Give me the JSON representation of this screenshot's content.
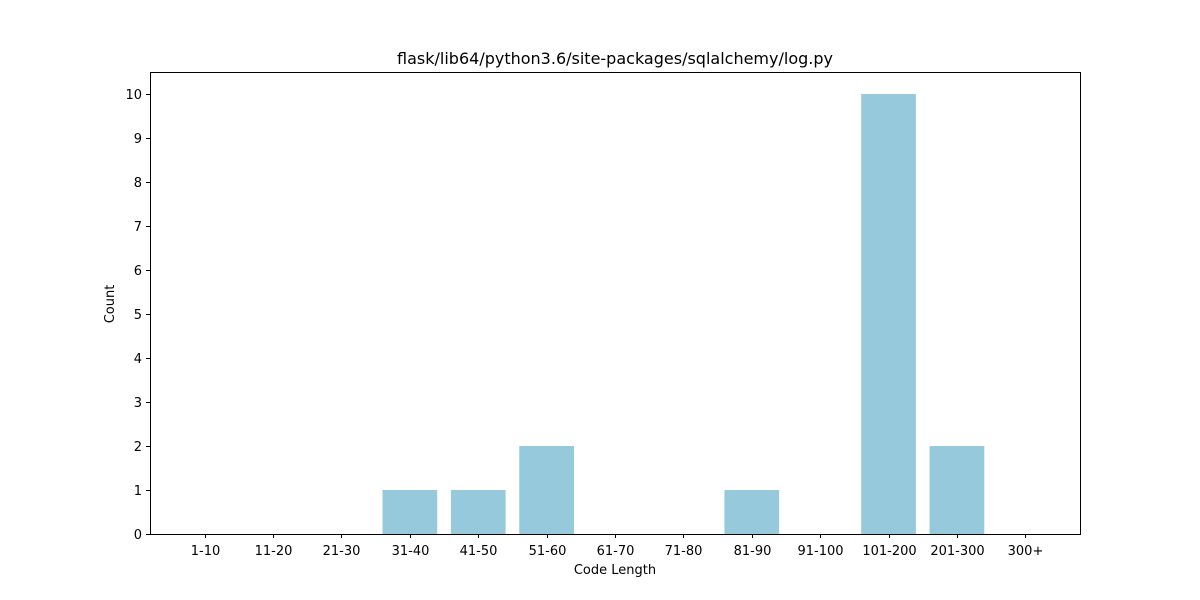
{
  "chart_data": {
    "type": "bar",
    "title": "flask/lib64/python3.6/site-packages/sqlalchemy/log.py",
    "xlabel": "Code Length",
    "ylabel": "Count",
    "categories": [
      "1-10",
      "11-20",
      "21-30",
      "31-40",
      "41-50",
      "51-60",
      "61-70",
      "71-80",
      "81-90",
      "91-100",
      "101-200",
      "201-300",
      "300+"
    ],
    "values": [
      0,
      0,
      0,
      1,
      1,
      2,
      0,
      0,
      1,
      0,
      10,
      2,
      0
    ],
    "ylim": [
      0,
      10.5
    ],
    "yticks": [
      0,
      1,
      2,
      3,
      4,
      5,
      6,
      7,
      8,
      9,
      10
    ],
    "bar_color": "#96c9dc",
    "grid": false,
    "legend": false
  }
}
